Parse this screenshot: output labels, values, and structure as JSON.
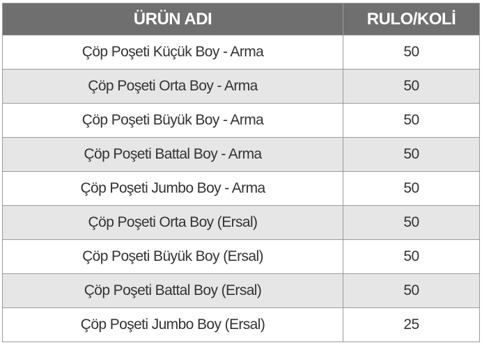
{
  "table": {
    "header": [
      "ÜRÜN ADI",
      "RULO/KOLİ"
    ],
    "rows": [
      [
        "Çöp Poşeti Küçük Boy - Arma",
        "50"
      ],
      [
        "Çöp Poşeti Orta Boy - Arma",
        "50"
      ],
      [
        "Çöp Poşeti Büyük Boy - Arma",
        "50"
      ],
      [
        "Çöp Poşeti Battal Boy - Arma",
        "50"
      ],
      [
        "Çöp Poşeti Jumbo Boy - Arma",
        "50"
      ],
      [
        "Çöp Poşeti Orta Boy (Ersal)",
        "50"
      ],
      [
        "Çöp Poşeti Büyük Boy (Ersal)",
        "50"
      ],
      [
        "Çöp Poşeti Battal Boy (Ersal)",
        "50"
      ],
      [
        "Çöp Poşeti Jumbo Boy (Ersal)",
        "25"
      ]
    ]
  }
}
